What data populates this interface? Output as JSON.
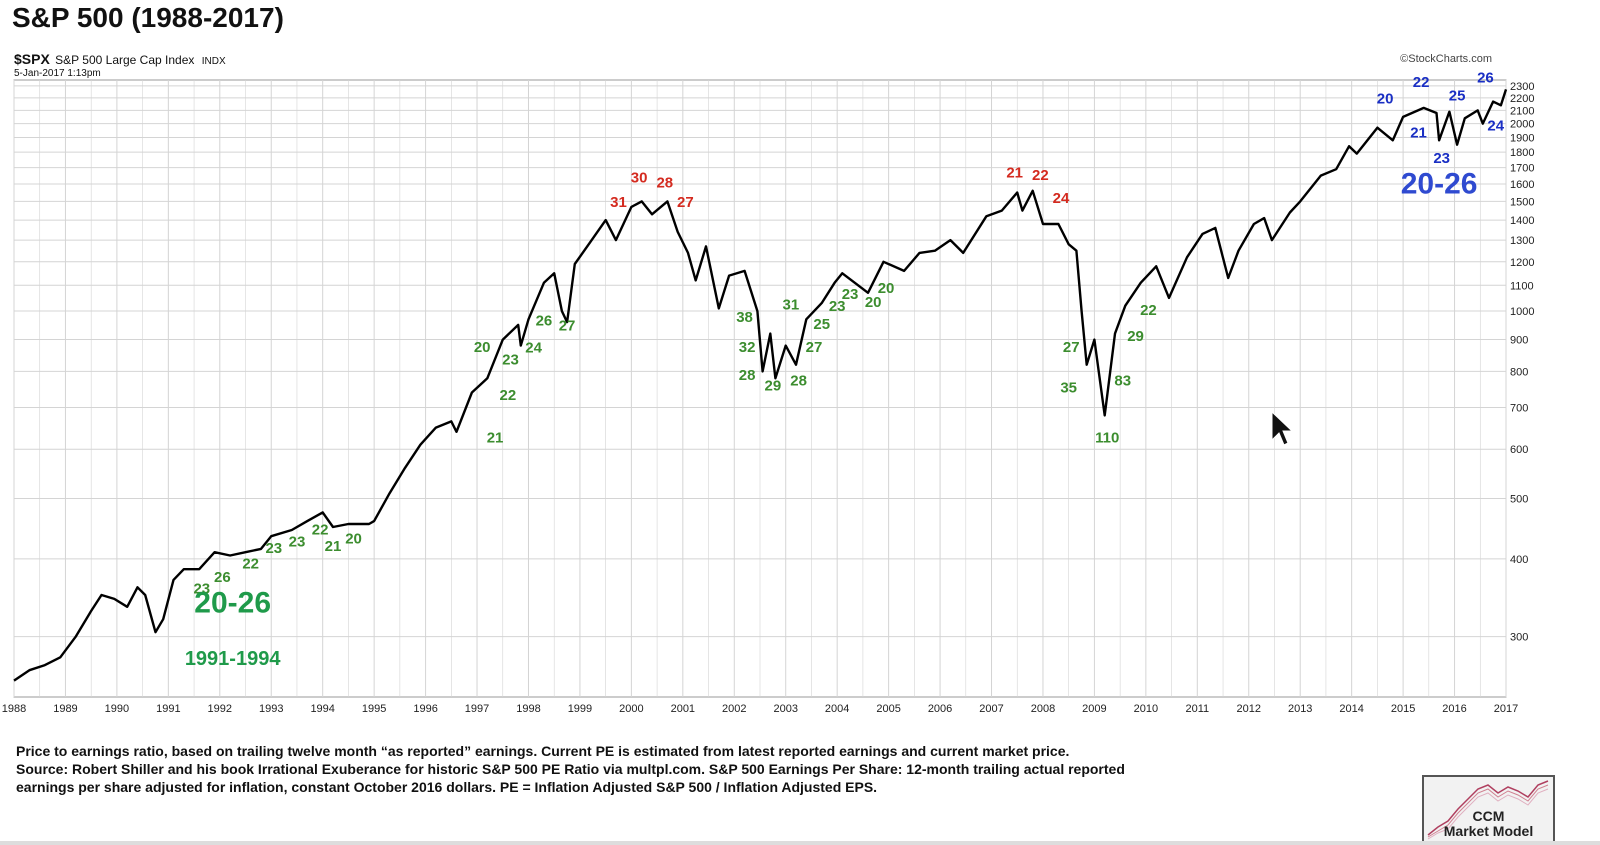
{
  "title": "S&P 500 (1988-2017)",
  "ticker": {
    "symbol": "$SPX",
    "name": "S&P 500 Large Cap Index",
    "exchange": "INDX",
    "date": "5-Jan-2017 1:13pm"
  },
  "brand": "©StockCharts.com",
  "footer": {
    "line1": "Price to earnings ratio, based on trailing twelve month “as reported” earnings. Current PE is estimated from latest reported earnings and current market price.",
    "line2": "Source: Robert Shiller and his book Irrational Exuberance for historic S&P 500 PE Ratio via multpl.com. S&P 500 Earnings Per Share: 12-month trailing actual reported",
    "line3": "earnings per share adjusted for inflation, constant October 2016 dollars.  PE = Inflation Adjusted S&P 500 / Inflation Adjusted EPS."
  },
  "logo": {
    "line1": "CCM",
    "line2": "Market Model"
  },
  "colors": {
    "line": "#000000",
    "green": "#3c8d2f",
    "red": "#d42a1f",
    "blue": "#1a2fc4",
    "bigGreen": "#1f9a4a",
    "bigBlue": "#2f4ad0",
    "grid": "#d4d4d4"
  },
  "chart_data": {
    "type": "line",
    "scale": "log",
    "xlim": [
      1988,
      2017
    ],
    "ylim": [
      240,
      2350
    ],
    "xticks": [
      "1988",
      "1989",
      "1990",
      "1991",
      "1992",
      "1993",
      "1994",
      "1995",
      "1996",
      "1997",
      "1998",
      "1999",
      "2000",
      "2001",
      "2002",
      "2003",
      "2004",
      "2005",
      "2006",
      "2007",
      "2008",
      "2009",
      "2010",
      "2011",
      "2012",
      "2013",
      "2014",
      "2015",
      "2016",
      "2017"
    ],
    "yticks": [
      300,
      400,
      500,
      600,
      700,
      800,
      900,
      1000,
      1100,
      1200,
      1300,
      1400,
      1500,
      1600,
      1700,
      1800,
      1900,
      2000,
      2100,
      2200,
      2300
    ],
    "series": [
      {
        "points": [
          [
            1988.0,
            255
          ],
          [
            1988.3,
            265
          ],
          [
            1988.6,
            270
          ],
          [
            1988.9,
            278
          ],
          [
            1989.2,
            300
          ],
          [
            1989.5,
            330
          ],
          [
            1989.7,
            350
          ],
          [
            1989.95,
            345
          ],
          [
            1990.2,
            335
          ],
          [
            1990.4,
            360
          ],
          [
            1990.55,
            350
          ],
          [
            1990.75,
            305
          ],
          [
            1990.9,
            320
          ],
          [
            1991.1,
            370
          ],
          [
            1991.3,
            385
          ],
          [
            1991.6,
            385
          ],
          [
            1991.9,
            410
          ],
          [
            1992.2,
            405
          ],
          [
            1992.5,
            410
          ],
          [
            1992.8,
            415
          ],
          [
            1993.0,
            435
          ],
          [
            1993.4,
            445
          ],
          [
            1993.7,
            460
          ],
          [
            1994.0,
            475
          ],
          [
            1994.2,
            450
          ],
          [
            1994.5,
            455
          ],
          [
            1994.9,
            455
          ],
          [
            1995.0,
            460
          ],
          [
            1995.3,
            510
          ],
          [
            1995.6,
            560
          ],
          [
            1995.9,
            610
          ],
          [
            1996.2,
            650
          ],
          [
            1996.5,
            665
          ],
          [
            1996.6,
            640
          ],
          [
            1996.9,
            740
          ],
          [
            1997.2,
            780
          ],
          [
            1997.5,
            900
          ],
          [
            1997.8,
            950
          ],
          [
            1997.85,
            880
          ],
          [
            1998.0,
            970
          ],
          [
            1998.3,
            1110
          ],
          [
            1998.5,
            1150
          ],
          [
            1998.65,
            1000
          ],
          [
            1998.75,
            960
          ],
          [
            1998.9,
            1190
          ],
          [
            1999.2,
            1290
          ],
          [
            1999.5,
            1400
          ],
          [
            1999.7,
            1300
          ],
          [
            2000.0,
            1470
          ],
          [
            2000.2,
            1500
          ],
          [
            2000.4,
            1430
          ],
          [
            2000.7,
            1500
          ],
          [
            2000.9,
            1340
          ],
          [
            2001.1,
            1240
          ],
          [
            2001.25,
            1120
          ],
          [
            2001.45,
            1270
          ],
          [
            2001.7,
            1010
          ],
          [
            2001.9,
            1140
          ],
          [
            2002.2,
            1160
          ],
          [
            2002.45,
            1000
          ],
          [
            2002.55,
            800
          ],
          [
            2002.7,
            920
          ],
          [
            2002.8,
            780
          ],
          [
            2003.0,
            880
          ],
          [
            2003.2,
            820
          ],
          [
            2003.4,
            970
          ],
          [
            2003.7,
            1030
          ],
          [
            2003.95,
            1110
          ],
          [
            2004.1,
            1150
          ],
          [
            2004.6,
            1070
          ],
          [
            2004.9,
            1200
          ],
          [
            2005.3,
            1160
          ],
          [
            2005.6,
            1240
          ],
          [
            2005.9,
            1250
          ],
          [
            2006.2,
            1300
          ],
          [
            2006.45,
            1240
          ],
          [
            2006.9,
            1420
          ],
          [
            2007.2,
            1450
          ],
          [
            2007.5,
            1550
          ],
          [
            2007.6,
            1450
          ],
          [
            2007.8,
            1560
          ],
          [
            2008.0,
            1380
          ],
          [
            2008.3,
            1380
          ],
          [
            2008.5,
            1280
          ],
          [
            2008.65,
            1250
          ],
          [
            2008.75,
            1000
          ],
          [
            2008.85,
            820
          ],
          [
            2009.0,
            900
          ],
          [
            2009.2,
            680
          ],
          [
            2009.4,
            920
          ],
          [
            2009.6,
            1020
          ],
          [
            2009.9,
            1110
          ],
          [
            2010.2,
            1180
          ],
          [
            2010.45,
            1050
          ],
          [
            2010.8,
            1220
          ],
          [
            2011.1,
            1330
          ],
          [
            2011.35,
            1360
          ],
          [
            2011.6,
            1130
          ],
          [
            2011.8,
            1250
          ],
          [
            2012.1,
            1380
          ],
          [
            2012.3,
            1410
          ],
          [
            2012.45,
            1300
          ],
          [
            2012.8,
            1440
          ],
          [
            2013.0,
            1500
          ],
          [
            2013.4,
            1650
          ],
          [
            2013.7,
            1690
          ],
          [
            2013.95,
            1840
          ],
          [
            2014.1,
            1790
          ],
          [
            2014.5,
            1970
          ],
          [
            2014.8,
            1880
          ],
          [
            2015.0,
            2050
          ],
          [
            2015.4,
            2120
          ],
          [
            2015.65,
            2080
          ],
          [
            2015.7,
            1880
          ],
          [
            2015.9,
            2090
          ],
          [
            2016.05,
            1850
          ],
          [
            2016.2,
            2040
          ],
          [
            2016.45,
            2100
          ],
          [
            2016.55,
            2000
          ],
          [
            2016.75,
            2170
          ],
          [
            2016.9,
            2140
          ],
          [
            2017.0,
            2270
          ]
        ]
      }
    ],
    "labels": [
      {
        "text": "23",
        "x": 1991.65,
        "y": 352,
        "c": "green"
      },
      {
        "text": "26",
        "x": 1992.05,
        "y": 367,
        "c": "green"
      },
      {
        "text": "22",
        "x": 1992.6,
        "y": 386,
        "c": "green"
      },
      {
        "text": "23",
        "x": 1993.05,
        "y": 409,
        "c": "green"
      },
      {
        "text": "23",
        "x": 1993.5,
        "y": 419,
        "c": "green"
      },
      {
        "text": "22",
        "x": 1993.95,
        "y": 438,
        "c": "green"
      },
      {
        "text": "21",
        "x": 1994.2,
        "y": 412,
        "c": "green"
      },
      {
        "text": "20",
        "x": 1994.6,
        "y": 423,
        "c": "green"
      },
      {
        "text": "21",
        "x": 1997.35,
        "y": 615,
        "c": "green"
      },
      {
        "text": "22",
        "x": 1997.6,
        "y": 720,
        "c": "green"
      },
      {
        "text": "20",
        "x": 1997.1,
        "y": 860,
        "c": "green"
      },
      {
        "text": "23",
        "x": 1997.65,
        "y": 820,
        "c": "green"
      },
      {
        "text": "24",
        "x": 1998.1,
        "y": 858,
        "c": "green"
      },
      {
        "text": "26",
        "x": 1998.3,
        "y": 948,
        "c": "green"
      },
      {
        "text": "27",
        "x": 1998.75,
        "y": 930,
        "c": "green"
      },
      {
        "text": "31",
        "x": 1999.75,
        "y": 1470,
        "c": "red"
      },
      {
        "text": "30",
        "x": 2000.15,
        "y": 1610,
        "c": "red"
      },
      {
        "text": "28",
        "x": 2000.65,
        "y": 1580,
        "c": "red"
      },
      {
        "text": "27",
        "x": 2001.05,
        "y": 1470,
        "c": "red"
      },
      {
        "text": "38",
        "x": 2002.2,
        "y": 960,
        "c": "green"
      },
      {
        "text": "32",
        "x": 2002.25,
        "y": 860,
        "c": "green"
      },
      {
        "text": "28",
        "x": 2002.25,
        "y": 775,
        "c": "green"
      },
      {
        "text": "29",
        "x": 2002.75,
        "y": 745,
        "c": "green"
      },
      {
        "text": "28",
        "x": 2003.25,
        "y": 760,
        "c": "green"
      },
      {
        "text": "31",
        "x": 2003.1,
        "y": 1005,
        "c": "green"
      },
      {
        "text": "25",
        "x": 2003.7,
        "y": 935,
        "c": "green"
      },
      {
        "text": "27",
        "x": 2003.55,
        "y": 860,
        "c": "green"
      },
      {
        "text": "23",
        "x": 2004.0,
        "y": 1000,
        "c": "green"
      },
      {
        "text": "23",
        "x": 2004.25,
        "y": 1045,
        "c": "green"
      },
      {
        "text": "20",
        "x": 2004.7,
        "y": 1015,
        "c": "green"
      },
      {
        "text": "20",
        "x": 2004.95,
        "y": 1070,
        "c": "green"
      },
      {
        "text": "21",
        "x": 2007.45,
        "y": 1640,
        "c": "red"
      },
      {
        "text": "22",
        "x": 2007.95,
        "y": 1625,
        "c": "red"
      },
      {
        "text": "24",
        "x": 2008.35,
        "y": 1490,
        "c": "red"
      },
      {
        "text": "27",
        "x": 2008.55,
        "y": 860,
        "c": "green"
      },
      {
        "text": "35",
        "x": 2008.5,
        "y": 740,
        "c": "green"
      },
      {
        "text": "83",
        "x": 2009.55,
        "y": 760,
        "c": "green"
      },
      {
        "text": "110",
        "x": 2009.25,
        "y": 615,
        "c": "green"
      },
      {
        "text": "29",
        "x": 2009.8,
        "y": 895,
        "c": "green"
      },
      {
        "text": "22",
        "x": 2010.05,
        "y": 985,
        "c": "green"
      },
      {
        "text": "20",
        "x": 2014.65,
        "y": 2155,
        "c": "blue"
      },
      {
        "text": "22",
        "x": 2015.35,
        "y": 2290,
        "c": "blue"
      },
      {
        "text": "21",
        "x": 2015.3,
        "y": 1900,
        "c": "blue"
      },
      {
        "text": "25",
        "x": 2016.05,
        "y": 2180,
        "c": "blue"
      },
      {
        "text": "23",
        "x": 2015.75,
        "y": 1730,
        "c": "blue"
      },
      {
        "text": "26",
        "x": 2016.6,
        "y": 2330,
        "c": "blue"
      },
      {
        "text": "24",
        "x": 2016.8,
        "y": 1950,
        "c": "blue"
      }
    ],
    "big_labels": [
      {
        "text": "20-26",
        "x": 1992.25,
        "y": 328,
        "c": "bigGreen",
        "size": 30
      },
      {
        "text": "1991-1994",
        "x": 1992.25,
        "y": 270,
        "c": "bigGreen",
        "size": 20
      },
      {
        "text": "20-26",
        "x": 2015.7,
        "y": 1545,
        "c": "bigBlue",
        "size": 30
      }
    ]
  }
}
